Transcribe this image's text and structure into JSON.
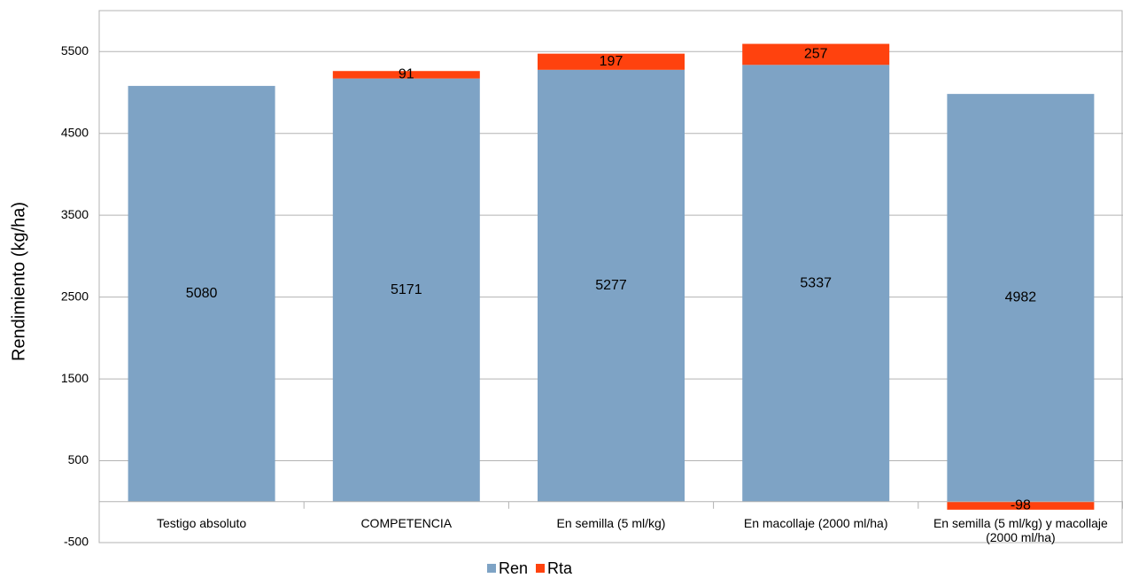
{
  "chart_data": {
    "type": "stacked_bar",
    "y_axis_label": "Rendimiento (kg/ha)",
    "categories": [
      "Testigo absoluto",
      "COMPETENCIA",
      "En semilla (5 ml/kg)",
      "En macollaje (2000 ml/ha)",
      "En semilla (5 ml/kg) y macollaje (2000 ml/ha)"
    ],
    "series": [
      {
        "name": "Ren",
        "color": "#7ea3c5",
        "values": [
          5080,
          5171,
          5277,
          5337,
          4982
        ]
      },
      {
        "name": "Rta",
        "color": "#ff420e",
        "values": [
          null,
          91,
          197,
          257,
          -98
        ]
      }
    ],
    "ylim": [
      -500,
      6000
    ],
    "yticks": [
      -500,
      500,
      1500,
      2500,
      3500,
      4500,
      5500
    ],
    "grid": true,
    "legend": "bottom"
  }
}
